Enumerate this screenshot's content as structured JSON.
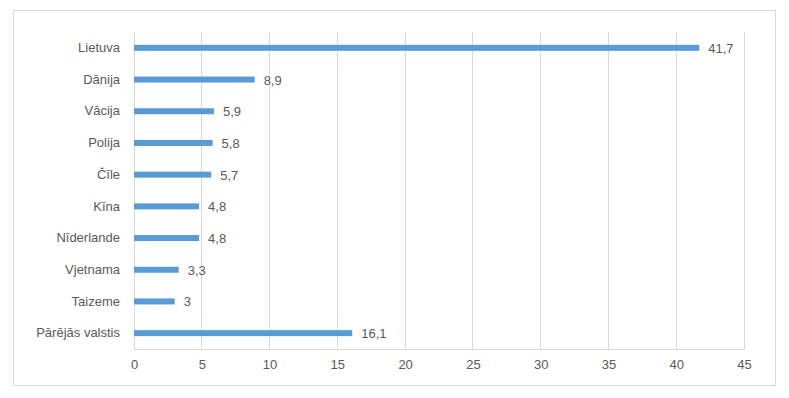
{
  "chart_data": {
    "type": "bar",
    "orientation": "horizontal",
    "categories": [
      "Lietuva",
      "Dānija",
      "Vācija",
      "Polija",
      "Čīle",
      "Kīna",
      "Nīderlande",
      "Vjetnama",
      "Taizeme",
      "Pārējās valstis"
    ],
    "values": [
      41.7,
      8.9,
      5.9,
      5.8,
      5.7,
      4.8,
      4.8,
      3.3,
      3,
      16.1
    ],
    "value_labels": [
      "41,7",
      "8,9",
      "5,9",
      "5,8",
      "5,7",
      "4,8",
      "4,8",
      "3,3",
      "3",
      "16,1"
    ],
    "color": "#5b9bd5",
    "xlim": [
      0,
      45
    ],
    "xticks": [
      0,
      5,
      10,
      15,
      20,
      25,
      30,
      35,
      40,
      45
    ],
    "grid": true,
    "data_labels": true
  }
}
